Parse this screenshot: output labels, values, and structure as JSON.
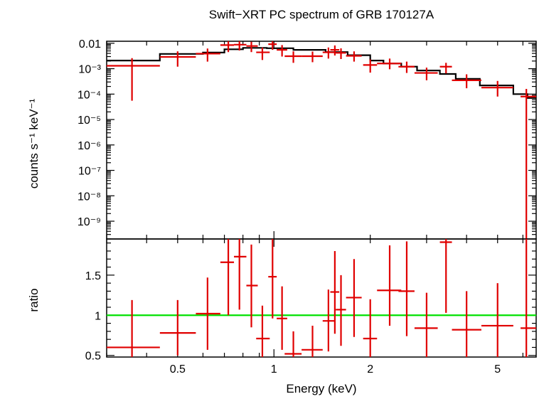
{
  "chart_data": [
    {
      "type": "line",
      "panel": "spectrum",
      "title": "Swift−XRT PC spectrum of GRB 170127A",
      "xlabel": "Energy (keV)",
      "ylabel": "counts s⁻¹ keV⁻¹",
      "x_scale": "log",
      "y_scale": "log",
      "xlim": [
        0.3,
        6.6
      ],
      "ylim": [
        2e-10,
        0.012
      ],
      "y_ticks": [
        {
          "value": 0.01,
          "label": "0.01"
        },
        {
          "value": 0.001,
          "label": "10⁻³"
        },
        {
          "value": 0.0001,
          "label": "10⁻⁴"
        },
        {
          "value": 1e-05,
          "label": "10⁻⁵"
        },
        {
          "value": 1e-06,
          "label": "10⁻⁶"
        },
        {
          "value": 1e-07,
          "label": "10⁻⁷"
        },
        {
          "value": 1e-08,
          "label": "10⁻⁸"
        },
        {
          "value": 1e-09,
          "label": "10⁻⁹"
        }
      ],
      "model_color": "#000000",
      "data_color": "#e00000",
      "model": {
        "edges": [
          0.3,
          0.44,
          0.6,
          0.7,
          0.8,
          0.95,
          1.15,
          1.45,
          1.7,
          2.0,
          2.2,
          2.5,
          2.8,
          3.3,
          3.7,
          4.4,
          5.6,
          6.2,
          6.6
        ],
        "values": [
          0.0021,
          0.0038,
          0.0043,
          0.0058,
          0.0066,
          0.0064,
          0.0055,
          0.0045,
          0.0034,
          0.0021,
          0.0016,
          0.0012,
          0.00085,
          0.00062,
          0.0004,
          0.00022,
          0.0001,
          7e-05
        ]
      },
      "series": [
        {
          "points": [
            {
              "x": 0.36,
              "xlo": 0.3,
              "xhi": 0.44,
              "y": 0.0013,
              "ylo": 5.5e-05,
              "yhi": 0.0026
            },
            {
              "x": 0.5,
              "xlo": 0.44,
              "xhi": 0.57,
              "y": 0.0029,
              "ylo": 0.0012,
              "yhi": 0.0048
            },
            {
              "x": 0.62,
              "xlo": 0.57,
              "xhi": 0.68,
              "y": 0.0039,
              "ylo": 0.0019,
              "yhi": 0.0062
            },
            {
              "x": 0.72,
              "xlo": 0.68,
              "xhi": 0.75,
              "y": 0.0085,
              "ylo": 0.0045,
              "yhi": 0.0125
            },
            {
              "x": 0.78,
              "xlo": 0.75,
              "xhi": 0.82,
              "y": 0.0088,
              "ylo": 0.0052,
              "yhi": 0.0125
            },
            {
              "x": 0.85,
              "xlo": 0.82,
              "xhi": 0.89,
              "y": 0.0078,
              "ylo": 0.0045,
              "yhi": 0.0115
            },
            {
              "x": 0.92,
              "xlo": 0.88,
              "xhi": 0.97,
              "y": 0.0044,
              "ylo": 0.0022,
              "yhi": 0.0068
            },
            {
              "x": 0.99,
              "xlo": 0.96,
              "xhi": 1.02,
              "y": 0.0092,
              "ylo": 0.0055,
              "yhi": 0.0125
            },
            {
              "x": 1.06,
              "xlo": 1.02,
              "xhi": 1.1,
              "y": 0.0055,
              "ylo": 0.003,
              "yhi": 0.0085
            },
            {
              "x": 1.15,
              "xlo": 1.08,
              "xhi": 1.22,
              "y": 0.0031,
              "ylo": 0.0017,
              "yhi": 0.0048
            },
            {
              "x": 1.32,
              "xlo": 1.22,
              "xhi": 1.42,
              "y": 0.0031,
              "ylo": 0.0018,
              "yhi": 0.0047
            },
            {
              "x": 1.48,
              "xlo": 1.42,
              "xhi": 1.55,
              "y": 0.0044,
              "ylo": 0.0025,
              "yhi": 0.0068
            },
            {
              "x": 1.55,
              "xlo": 1.5,
              "xhi": 1.6,
              "y": 0.0055,
              "ylo": 0.0033,
              "yhi": 0.0082
            },
            {
              "x": 1.62,
              "xlo": 1.56,
              "xhi": 1.68,
              "y": 0.0042,
              "ylo": 0.0024,
              "yhi": 0.0063
            },
            {
              "x": 1.78,
              "xlo": 1.68,
              "xhi": 1.88,
              "y": 0.0032,
              "ylo": 0.0019,
              "yhi": 0.0048
            },
            {
              "x": 2.0,
              "xlo": 1.9,
              "xhi": 2.1,
              "y": 0.0014,
              "ylo": 0.0007,
              "yhi": 0.0023
            },
            {
              "x": 2.3,
              "xlo": 2.1,
              "xhi": 2.5,
              "y": 0.0016,
              "ylo": 0.00095,
              "yhi": 0.0025
            },
            {
              "x": 2.6,
              "xlo": 2.45,
              "xhi": 2.75,
              "y": 0.0012,
              "ylo": 0.00068,
              "yhi": 0.0019
            },
            {
              "x": 3.0,
              "xlo": 2.75,
              "xhi": 3.25,
              "y": 0.00068,
              "ylo": 0.00035,
              "yhi": 0.0011
            },
            {
              "x": 3.45,
              "xlo": 3.3,
              "xhi": 3.6,
              "y": 0.0012,
              "ylo": 0.00065,
              "yhi": 0.0017
            },
            {
              "x": 4.0,
              "xlo": 3.6,
              "xhi": 4.45,
              "y": 0.00035,
              "ylo": 0.00017,
              "yhi": 0.0006
            },
            {
              "x": 5.0,
              "xlo": 4.45,
              "xhi": 5.6,
              "y": 0.00018,
              "ylo": 8e-05,
              "yhi": 0.00033
            },
            {
              "x": 6.15,
              "xlo": 5.9,
              "xhi": 6.6,
              "y": 8e-05,
              "ylo": 2e-10,
              "yhi": 0.00016
            }
          ]
        }
      ]
    },
    {
      "type": "scatter",
      "panel": "ratio",
      "xlabel": "Energy (keV)",
      "ylabel": "ratio",
      "x_scale": "log",
      "xlim": [
        0.3,
        6.6
      ],
      "ylim": [
        0.48,
        1.95
      ],
      "x_ticks": [
        {
          "value": 0.5,
          "label": "0.5"
        },
        {
          "value": 1,
          "label": "1"
        },
        {
          "value": 2,
          "label": "2"
        },
        {
          "value": 5,
          "label": "5"
        }
      ],
      "y_ticks": [
        {
          "value": 0.5,
          "label": "0.5"
        },
        {
          "value": 1,
          "label": "1"
        },
        {
          "value": 1.5,
          "label": "1.5"
        }
      ],
      "reference_line": {
        "y": 1,
        "color": "#00e000"
      },
      "data_color": "#e00000",
      "series": [
        {
          "points": [
            {
              "x": 0.36,
              "xlo": 0.3,
              "xhi": 0.44,
              "y": 0.6,
              "ylo": 0.48,
              "yhi": 1.19
            },
            {
              "x": 0.5,
              "xlo": 0.44,
              "xhi": 0.57,
              "y": 0.78,
              "ylo": 0.5,
              "yhi": 1.19
            },
            {
              "x": 0.62,
              "xlo": 0.57,
              "xhi": 0.68,
              "y": 1.02,
              "ylo": 0.57,
              "yhi": 1.47
            },
            {
              "x": 0.72,
              "xlo": 0.68,
              "xhi": 0.75,
              "y": 1.66,
              "ylo": 1.0,
              "yhi": 1.95
            },
            {
              "x": 0.78,
              "xlo": 0.75,
              "xhi": 0.82,
              "y": 1.73,
              "ylo": 1.07,
              "yhi": 1.95
            },
            {
              "x": 0.85,
              "xlo": 0.82,
              "xhi": 0.89,
              "y": 1.37,
              "ylo": 0.85,
              "yhi": 1.88
            },
            {
              "x": 0.92,
              "xlo": 0.88,
              "xhi": 0.97,
              "y": 0.71,
              "ylo": 0.48,
              "yhi": 1.12
            },
            {
              "x": 0.99,
              "xlo": 0.96,
              "xhi": 1.02,
              "y": 1.48,
              "ylo": 0.96,
              "yhi": 1.95
            },
            {
              "x": 1.06,
              "xlo": 1.02,
              "xhi": 1.1,
              "y": 0.96,
              "ylo": 0.57,
              "yhi": 1.36
            },
            {
              "x": 1.15,
              "xlo": 1.08,
              "xhi": 1.22,
              "y": 0.52,
              "ylo": 0.48,
              "yhi": 0.8
            },
            {
              "x": 1.32,
              "xlo": 1.22,
              "xhi": 1.42,
              "y": 0.57,
              "ylo": 0.48,
              "yhi": 0.87
            },
            {
              "x": 1.48,
              "xlo": 1.42,
              "xhi": 1.55,
              "y": 0.93,
              "ylo": 0.55,
              "yhi": 1.32
            },
            {
              "x": 1.55,
              "xlo": 1.5,
              "xhi": 1.6,
              "y": 1.29,
              "ylo": 0.77,
              "yhi": 1.8
            },
            {
              "x": 1.62,
              "xlo": 1.56,
              "xhi": 1.68,
              "y": 1.07,
              "ylo": 0.62,
              "yhi": 1.5
            },
            {
              "x": 1.78,
              "xlo": 1.68,
              "xhi": 1.88,
              "y": 1.22,
              "ylo": 0.73,
              "yhi": 1.7
            },
            {
              "x": 2.0,
              "xlo": 1.9,
              "xhi": 2.1,
              "y": 0.71,
              "ylo": 0.48,
              "yhi": 1.2
            },
            {
              "x": 2.3,
              "xlo": 2.1,
              "xhi": 2.5,
              "y": 1.31,
              "ylo": 0.87,
              "yhi": 1.87
            },
            {
              "x": 2.6,
              "xlo": 2.45,
              "xhi": 2.75,
              "y": 1.3,
              "ylo": 0.74,
              "yhi": 1.92
            },
            {
              "x": 3.0,
              "xlo": 2.75,
              "xhi": 3.25,
              "y": 0.84,
              "ylo": 0.48,
              "yhi": 1.28
            },
            {
              "x": 3.45,
              "xlo": 3.3,
              "xhi": 3.6,
              "y": 1.91,
              "ylo": 1.03,
              "yhi": 1.95
            },
            {
              "x": 4.0,
              "xlo": 3.6,
              "xhi": 4.45,
              "y": 0.82,
              "ylo": 0.48,
              "yhi": 1.3
            },
            {
              "x": 5.0,
              "xlo": 4.45,
              "xhi": 5.6,
              "y": 0.87,
              "ylo": 0.48,
              "yhi": 1.4
            },
            {
              "x": 6.15,
              "xlo": 5.9,
              "xhi": 6.6,
              "y": 0.84,
              "ylo": 0.48,
              "yhi": 1.95
            }
          ]
        }
      ]
    }
  ]
}
